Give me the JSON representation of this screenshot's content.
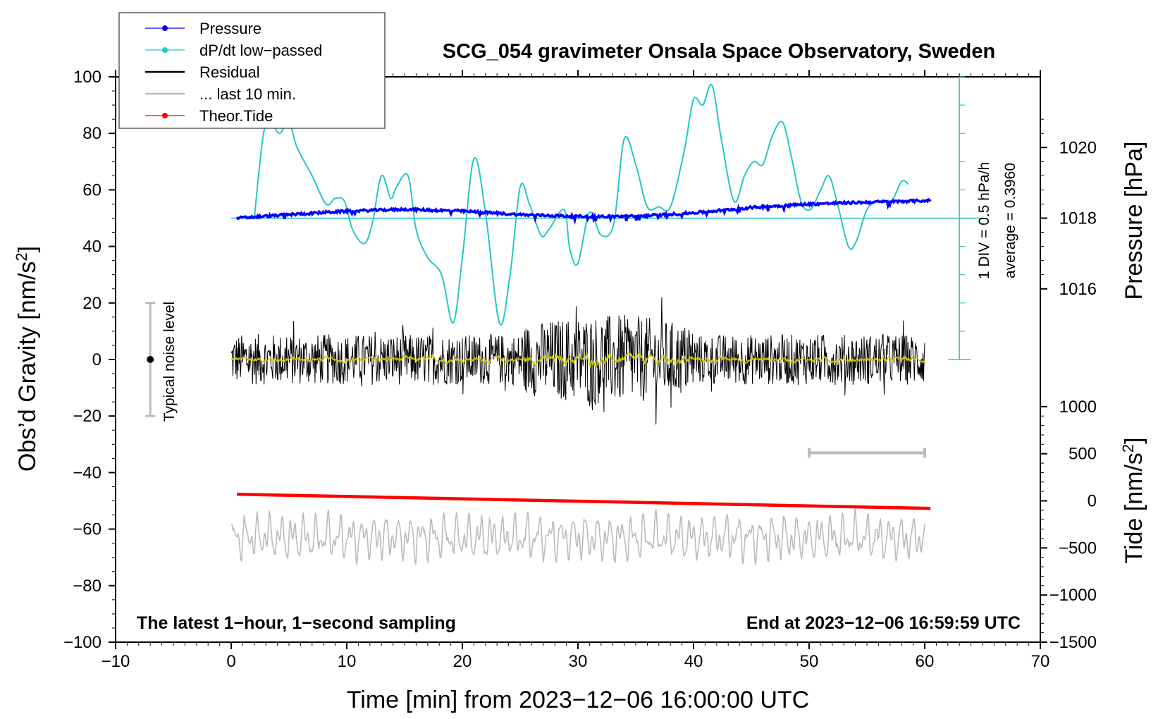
{
  "chart_data": {
    "type": "line",
    "title": "SCG_054 gravimeter Onsala Space Observatory, Sweden",
    "xlabel": "Time [min] from 2023−12−06 16:00:00 UTC",
    "ylabel_main": "Obs’d Gravity [nm/s",
    "ylabel_sup": "2",
    "ylabel_main_close": "]",
    "ylabel_pressure": "Pressure [hPa]",
    "ylabel_tide": "Tide [nm/s",
    "ylabel_tide_close": "]",
    "xlim": [
      -10,
      70
    ],
    "ylim": [
      -100,
      100
    ],
    "x_ticks": [
      {
        "v": -10,
        "label": "−10"
      },
      {
        "v": 0,
        "label": "0"
      },
      {
        "v": 10,
        "label": "10"
      },
      {
        "v": 20,
        "label": "20"
      },
      {
        "v": 30,
        "label": "30"
      },
      {
        "v": 40,
        "label": "40"
      },
      {
        "v": 50,
        "label": "50"
      },
      {
        "v": 60,
        "label": "60"
      },
      {
        "v": 70,
        "label": "70"
      }
    ],
    "y_ticks": [
      {
        "v": 100,
        "label": "100"
      },
      {
        "v": 80,
        "label": "80"
      },
      {
        "v": 60,
        "label": "60"
      },
      {
        "v": 40,
        "label": "40"
      },
      {
        "v": 20,
        "label": "20"
      },
      {
        "v": 0,
        "label": "0"
      },
      {
        "v": -20,
        "label": "−20"
      },
      {
        "v": -40,
        "label": "−40"
      },
      {
        "v": -60,
        "label": "−60"
      },
      {
        "v": -80,
        "label": "−80"
      },
      {
        "v": -100,
        "label": "−100"
      }
    ],
    "pressure_axis": {
      "range": [
        1016,
        1020
      ],
      "at_gravity": [
        25,
        75
      ],
      "ticks": [
        {
          "v": 1020,
          "label": "1020"
        },
        {
          "v": 1018,
          "label": "1018"
        },
        {
          "v": 1016,
          "label": "1016"
        }
      ]
    },
    "tide_axis": {
      "range": [
        -1500,
        1000
      ],
      "at_gravity": [
        -100,
        -16.67
      ],
      "ticks": [
        {
          "v": 1000,
          "label": "1000"
        },
        {
          "v": 500,
          "label": "500"
        },
        {
          "v": 0,
          "label": "0"
        },
        {
          "v": -500,
          "label": "−500"
        },
        {
          "v": -1000,
          "label": "−1000"
        },
        {
          "v": -1500,
          "label": "−1500"
        }
      ]
    },
    "legend": [
      {
        "label": "Pressure",
        "color": "#0000ff",
        "marker": true
      },
      {
        "label": "dP/dt low−passed",
        "color": "#26c6c6",
        "marker": true
      },
      {
        "label": "Residual",
        "color": "#000000",
        "marker": false
      },
      {
        "label": "... last 10 min.",
        "color": "#bbbbbb",
        "marker": false
      },
      {
        "label": "Theor.Tide",
        "color": "#ff0000",
        "marker": true
      }
    ],
    "series": [
      {
        "name": "Pressure",
        "color": "#0000ff",
        "unit": "hPa",
        "x": [
          0.5,
          5,
          10,
          15,
          20,
          25,
          30,
          35,
          40,
          45,
          50,
          55,
          60.5
        ],
        "values": [
          1018.0,
          1018.1,
          1018.2,
          1018.25,
          1018.2,
          1018.1,
          1018.05,
          1018.05,
          1018.15,
          1018.3,
          1018.4,
          1018.45,
          1018.5
        ]
      },
      {
        "name": "dP/dt low−passed",
        "color": "#26c6c6",
        "baseline": 50,
        "x": [
          2,
          2.8,
          3.5,
          4.2,
          5,
          5.7,
          7,
          8.2,
          9,
          9.8,
          10.5,
          11.5,
          12.2,
          13,
          13.8,
          14.3,
          15.3,
          16,
          17,
          18.2,
          19.2,
          20,
          21,
          22,
          23.2,
          24.1,
          25,
          25.8,
          26.8,
          27.5,
          28.8,
          29.3,
          30,
          31,
          32,
          33.1,
          34,
          35,
          36,
          37,
          38,
          39.2,
          40,
          40.8,
          41.6,
          42.4,
          43.5,
          44.4,
          45.2,
          46,
          46.8,
          47.7,
          48.5,
          49.3,
          50.1,
          51,
          51.7,
          52.4,
          53.4,
          54.1,
          55,
          56,
          57.1,
          58,
          58.6
        ],
        "values": [
          50,
          80,
          83,
          80,
          84,
          75,
          65,
          55,
          57,
          56,
          46,
          41,
          48,
          65,
          57,
          61,
          65,
          46,
          36,
          30,
          13,
          36,
          71,
          52,
          13,
          29,
          61,
          55,
          44,
          46,
          53,
          39,
          34,
          52,
          44,
          48,
          78,
          69,
          54,
          54,
          54,
          74,
          92,
          90,
          97,
          78,
          56,
          65,
          70,
          69,
          79,
          84,
          71,
          56,
          53,
          60,
          65,
          56,
          40,
          42,
          53,
          56,
          56,
          63,
          62
        ]
      },
      {
        "name": "Residual",
        "color": "#000000",
        "x_range": [
          0,
          60
        ],
        "amplitude_nm_s2": "±20"
      },
      {
        "name": "... last 10 min.",
        "color": "#bbbbbb",
        "x_range": [
          0,
          60
        ],
        "center": -63,
        "amplitude": "±10"
      },
      {
        "name": "Theor.Tide",
        "color": "#ff0000",
        "unit": "nm/s²",
        "x": [
          0.5,
          60.5
        ],
        "values": [
          70,
          -80
        ]
      }
    ],
    "noise_bar": {
      "label": "Typical noise level",
      "x": -7,
      "y": [
        -20,
        20
      ]
    },
    "scale_bar": {
      "x": [
        50,
        60
      ],
      "y": -33
    },
    "dpdt_scale": {
      "label1": "1 DIV = 0.5 hPa/h",
      "label2": "average = 0.3960",
      "x": 63,
      "y": [
        0,
        100
      ]
    },
    "annotation_left": "The latest 1−hour, 1−second sampling",
    "annotation_right": "End at 2023−12−06 16:59:59 UTC"
  }
}
